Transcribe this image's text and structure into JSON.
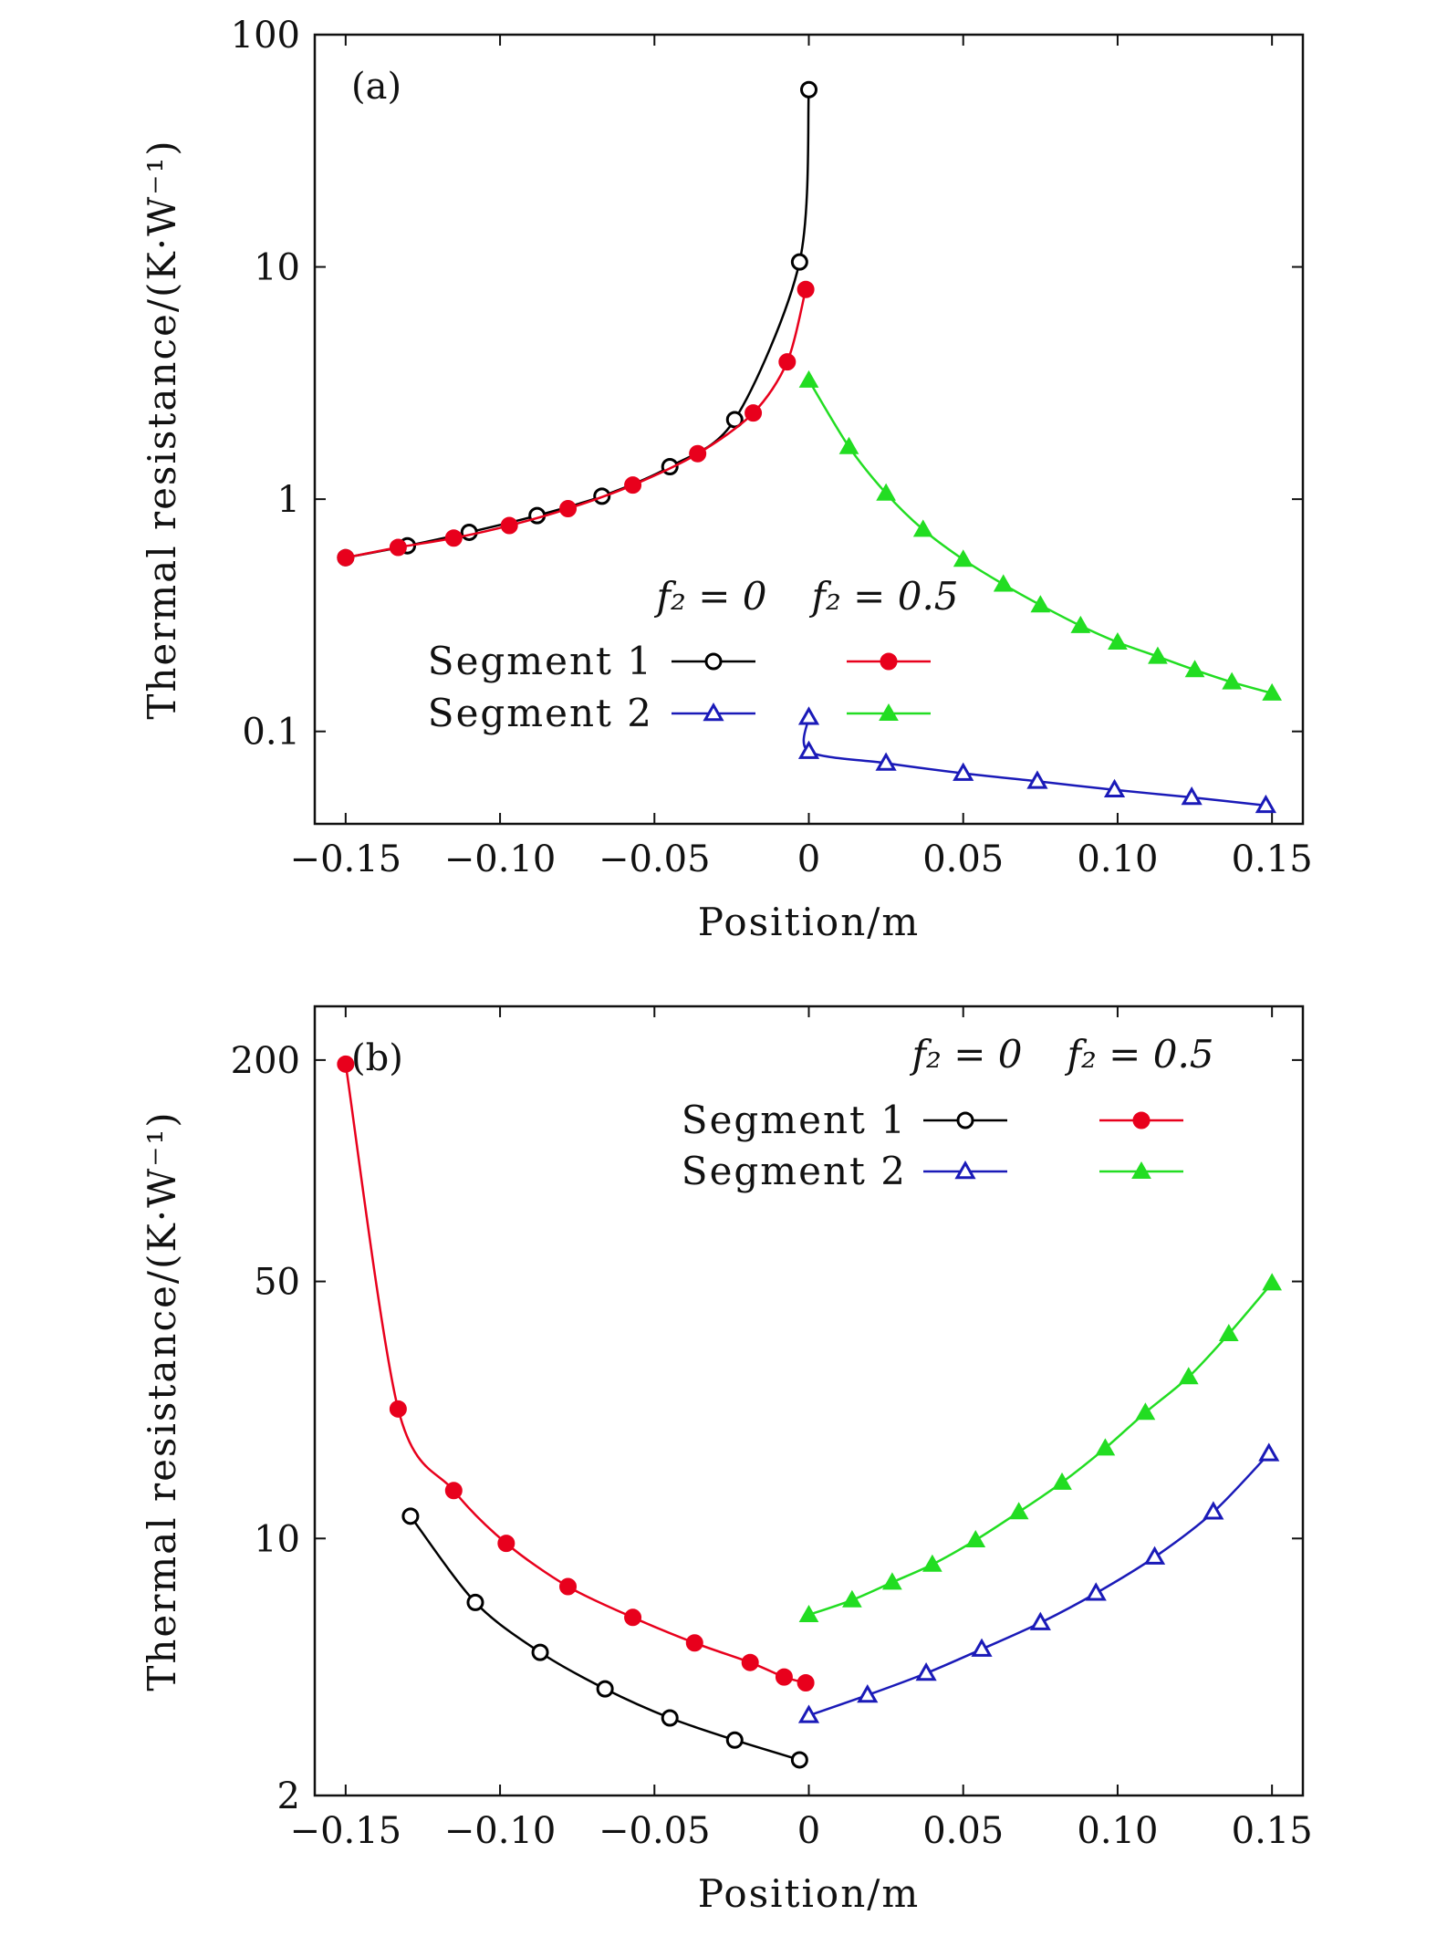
{
  "chart_data": [
    {
      "type": "line",
      "panel_label": "(a)",
      "xlabel": "Position/m",
      "ylabel": "Thermal resistance/(K·W⁻¹)",
      "xlim": [
        -0.16,
        0.16
      ],
      "ylim": [
        0.04,
        100
      ],
      "yscale": "log",
      "xticks": [
        -0.15,
        -0.1,
        -0.05,
        0,
        0.05,
        0.1,
        0.15
      ],
      "xtick_labels": [
        "−0.15",
        "−0.10",
        "−0.05",
        "0",
        "0.05",
        "0.10",
        "0.15"
      ],
      "yticks": [
        0.1,
        1,
        10,
        100
      ],
      "ytick_labels": [
        "0.1",
        "1",
        "10",
        "100"
      ],
      "grid": false,
      "legend": {
        "placement": "center-right",
        "col_headers": [
          "f₂ = 0",
          "f₂ = 0.5"
        ],
        "rows": [
          "Segment 1",
          "Segment 2"
        ]
      },
      "series": [
        {
          "case": "f2=0",
          "segment": "Segment 1",
          "color": "#000000",
          "marker": "open-circle",
          "points": [
            [
              -0.15,
              0.56
            ],
            [
              -0.13,
              0.63
            ],
            [
              -0.11,
              0.72
            ],
            [
              -0.088,
              0.85
            ],
            [
              -0.067,
              1.03
            ],
            [
              -0.045,
              1.38
            ],
            [
              -0.024,
              2.2
            ],
            [
              -0.003,
              10.5
            ],
            [
              0.0,
              58
            ]
          ]
        },
        {
          "case": "f2=0.5",
          "segment": "Segment 1",
          "color": "#e8001c",
          "marker": "filled-circle",
          "points": [
            [
              -0.15,
              0.56
            ],
            [
              -0.133,
              0.62
            ],
            [
              -0.115,
              0.68
            ],
            [
              -0.097,
              0.77
            ],
            [
              -0.078,
              0.91
            ],
            [
              -0.057,
              1.15
            ],
            [
              -0.036,
              1.57
            ],
            [
              -0.018,
              2.35
            ],
            [
              -0.007,
              3.9
            ],
            [
              -0.001,
              8.0
            ]
          ]
        },
        {
          "case": "f2=0",
          "segment": "Segment 2",
          "color": "#1a1ab8",
          "marker": "open-triangle",
          "points": [
            [
              0.0,
              0.115
            ],
            [
              0.0,
              0.082
            ],
            [
              0.025,
              0.073
            ],
            [
              0.05,
              0.066
            ],
            [
              0.074,
              0.061
            ],
            [
              0.099,
              0.056
            ],
            [
              0.124,
              0.052
            ],
            [
              0.148,
              0.048
            ]
          ]
        },
        {
          "case": "f2=0.5",
          "segment": "Segment 2",
          "color": "#22dd22",
          "marker": "filled-triangle",
          "points": [
            [
              0.0,
              3.25
            ],
            [
              0.013,
              1.68
            ],
            [
              0.025,
              1.06
            ],
            [
              0.037,
              0.74
            ],
            [
              0.05,
              0.55
            ],
            [
              0.063,
              0.43
            ],
            [
              0.075,
              0.35
            ],
            [
              0.088,
              0.285
            ],
            [
              0.1,
              0.242
            ],
            [
              0.113,
              0.21
            ],
            [
              0.125,
              0.184
            ],
            [
              0.137,
              0.163
            ],
            [
              0.15,
              0.146
            ]
          ]
        }
      ]
    },
    {
      "type": "line",
      "panel_label": "(b)",
      "xlabel": "Position/m",
      "ylabel": "Thermal resistance/(K·W⁻¹)",
      "xlim": [
        -0.16,
        0.16
      ],
      "ylim": [
        2,
        280
      ],
      "yscale": "log",
      "xticks": [
        -0.15,
        -0.1,
        -0.05,
        0,
        0.05,
        0.1,
        0.15
      ],
      "xtick_labels": [
        "−0.15",
        "−0.10",
        "−0.05",
        "0",
        "0.05",
        "0.10",
        "0.15"
      ],
      "yticks": [
        2,
        10,
        50,
        200
      ],
      "ytick_labels": [
        "2",
        "10",
        "50",
        "200"
      ],
      "grid": false,
      "legend": {
        "placement": "top-right",
        "col_headers": [
          "f₂ = 0",
          "f₂ = 0.5"
        ],
        "rows": [
          "Segment 1",
          "Segment 2"
        ]
      },
      "series": [
        {
          "case": "f2=0",
          "segment": "Segment 1",
          "color": "#000000",
          "marker": "open-circle",
          "points": [
            [
              -0.129,
              11.5
            ],
            [
              -0.108,
              6.7
            ],
            [
              -0.087,
              4.9
            ],
            [
              -0.066,
              3.9
            ],
            [
              -0.045,
              3.25
            ],
            [
              -0.024,
              2.83
            ],
            [
              -0.003,
              2.5
            ]
          ]
        },
        {
          "case": "f2=0.5",
          "segment": "Segment 1",
          "color": "#e8001c",
          "marker": "filled-circle",
          "points": [
            [
              -0.15,
              195
            ],
            [
              -0.133,
              22.5
            ],
            [
              -0.115,
              13.5
            ],
            [
              -0.098,
              9.7
            ],
            [
              -0.078,
              7.4
            ],
            [
              -0.057,
              6.1
            ],
            [
              -0.037,
              5.2
            ],
            [
              -0.019,
              4.6
            ],
            [
              -0.008,
              4.2
            ],
            [
              -0.001,
              4.05
            ]
          ]
        },
        {
          "case": "f2=0",
          "segment": "Segment 2",
          "color": "#1a1ab8",
          "marker": "open-triangle",
          "points": [
            [
              0.0,
              3.3
            ],
            [
              0.019,
              3.75
            ],
            [
              0.038,
              4.3
            ],
            [
              0.056,
              5.0
            ],
            [
              0.075,
              5.9
            ],
            [
              0.093,
              7.1
            ],
            [
              0.112,
              8.9
            ],
            [
              0.131,
              11.8
            ],
            [
              0.149,
              17.0
            ]
          ]
        },
        {
          "case": "f2=0.5",
          "segment": "Segment 2",
          "color": "#22dd22",
          "marker": "filled-triangle",
          "points": [
            [
              0.0,
              6.2
            ],
            [
              0.014,
              6.8
            ],
            [
              0.027,
              7.6
            ],
            [
              0.04,
              8.5
            ],
            [
              0.054,
              9.9
            ],
            [
              0.068,
              11.8
            ],
            [
              0.082,
              14.2
            ],
            [
              0.096,
              17.6
            ],
            [
              0.109,
              22.0
            ],
            [
              0.123,
              27.5
            ],
            [
              0.136,
              36
            ],
            [
              0.15,
              49.5
            ]
          ]
        }
      ]
    }
  ]
}
